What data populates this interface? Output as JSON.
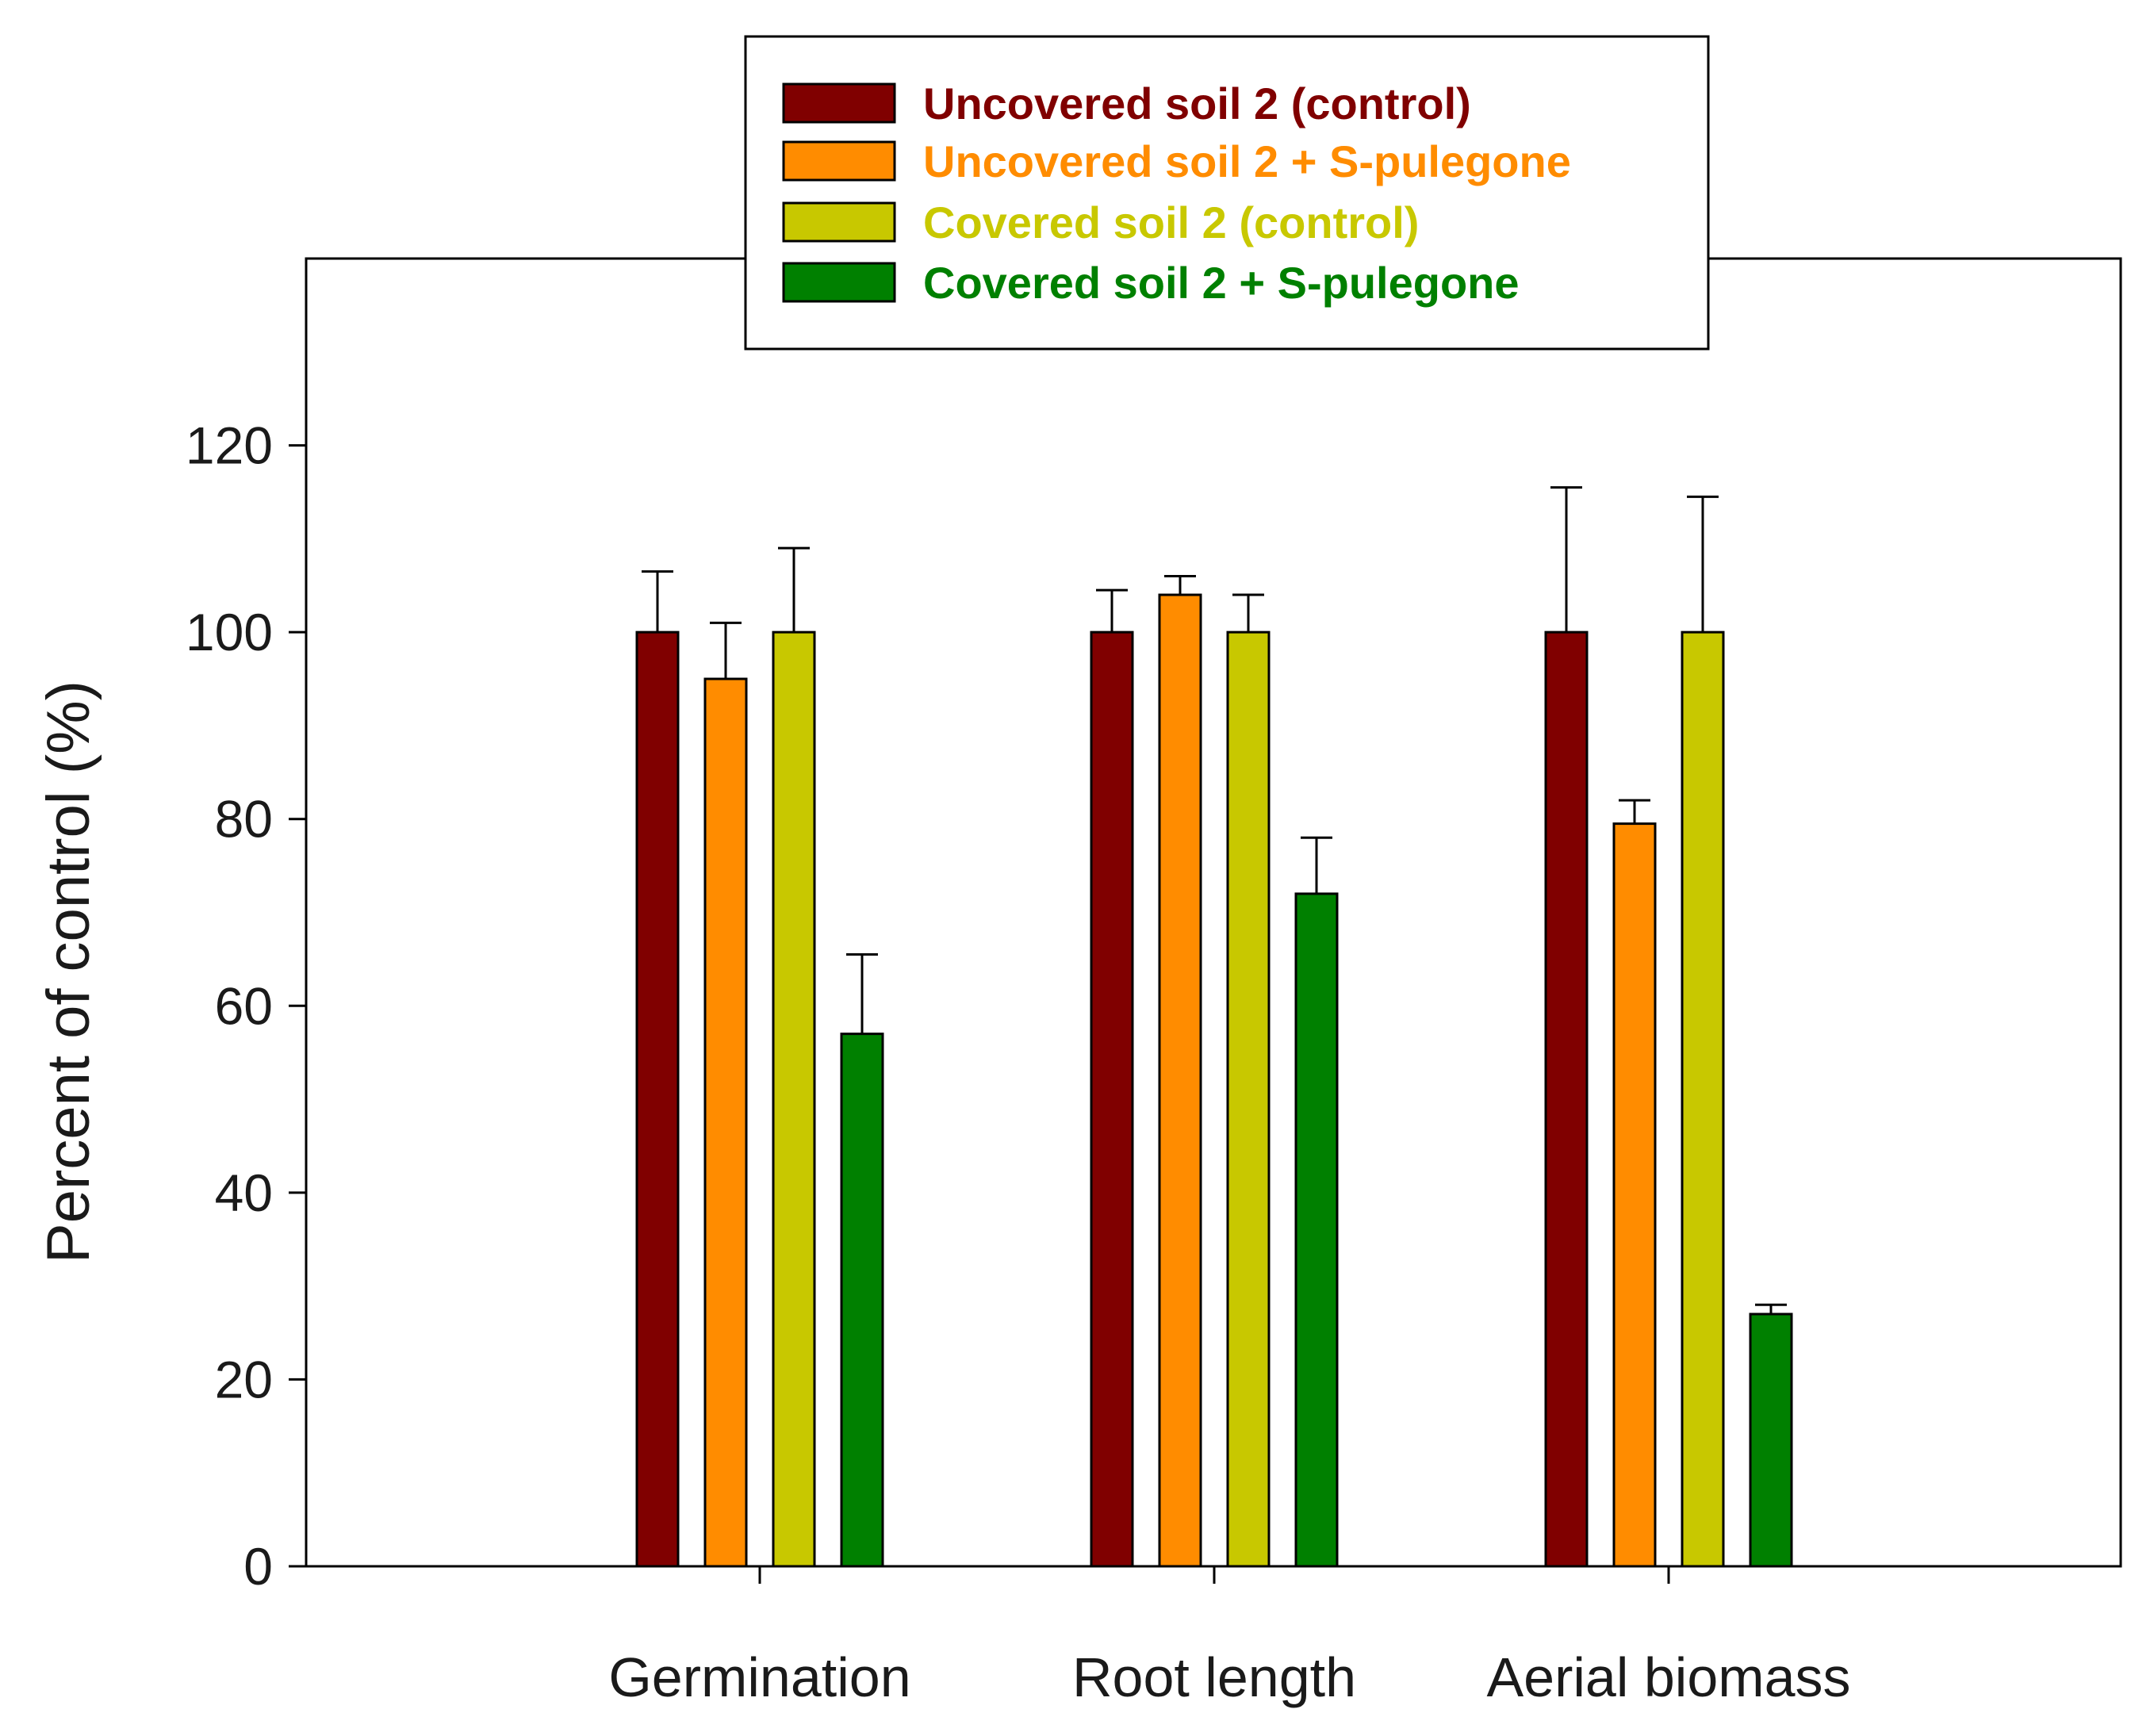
{
  "chart_data": {
    "type": "bar",
    "title": "",
    "xlabel": "",
    "ylabel": "Percent of control (%)",
    "ylim": [
      0,
      140
    ],
    "yticks": [
      0,
      20,
      40,
      60,
      80,
      100,
      120
    ],
    "categories": [
      "Germination",
      "Root length",
      "Aerial biomass"
    ],
    "grid": false,
    "legend_position": "top-center",
    "series": [
      {
        "name": "Uncovered soil 2 (control)",
        "color": "#800000",
        "values": [
          100,
          100,
          100
        ],
        "errors": [
          6.5,
          4.5,
          15.5
        ]
      },
      {
        "name": "Uncovered soil 2 + S-pulegone",
        "color": "#FF8C00",
        "values": [
          95,
          104,
          79.5
        ],
        "errors": [
          6,
          2,
          2.5
        ]
      },
      {
        "name": "Covered soil 2 (control)",
        "color": "#C8C800",
        "values": [
          100,
          100,
          100
        ],
        "errors": [
          9,
          4,
          14.5
        ]
      },
      {
        "name": "Covered soil 2 + S-pulegone",
        "color": "#008000",
        "values": [
          57,
          72,
          27
        ],
        "errors": [
          8.5,
          6,
          1
        ]
      }
    ]
  }
}
